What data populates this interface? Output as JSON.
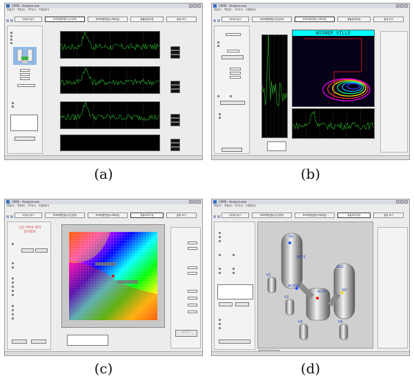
{
  "captions": [
    "(a)",
    "(b)",
    "(c)",
    "(d)"
  ],
  "window": {
    "title": "CPMS - Analysis.exe",
    "menu": [
      "파일(F)",
      "편집(E)",
      "보기(V)",
      "도움말(H)"
    ]
  },
  "tabs": [
    "데이터 읽기",
    "보조파형변환(시간영역)",
    "보조파형변환(스펙트럼)",
    "충돌위치추정",
    "결과 보기"
  ],
  "panel_b": {
    "wigner_title": "WIGNER VILLE"
  },
  "panel_c": {
    "heading": "시간-주파수 영역\n분석결과",
    "button": "결과 보기"
  },
  "panel_d": {
    "labels": [
      "SG",
      "RCP1",
      "RCP1B",
      "RCP2",
      "SG2",
      "RV",
      "V1",
      "V2",
      "V3",
      "V4"
    ]
  },
  "colors": {
    "window_bg": "#ececec",
    "plot_bg": "#000000",
    "trace": "#2fbf2f",
    "wigner_title_bg": "#00ffff"
  }
}
